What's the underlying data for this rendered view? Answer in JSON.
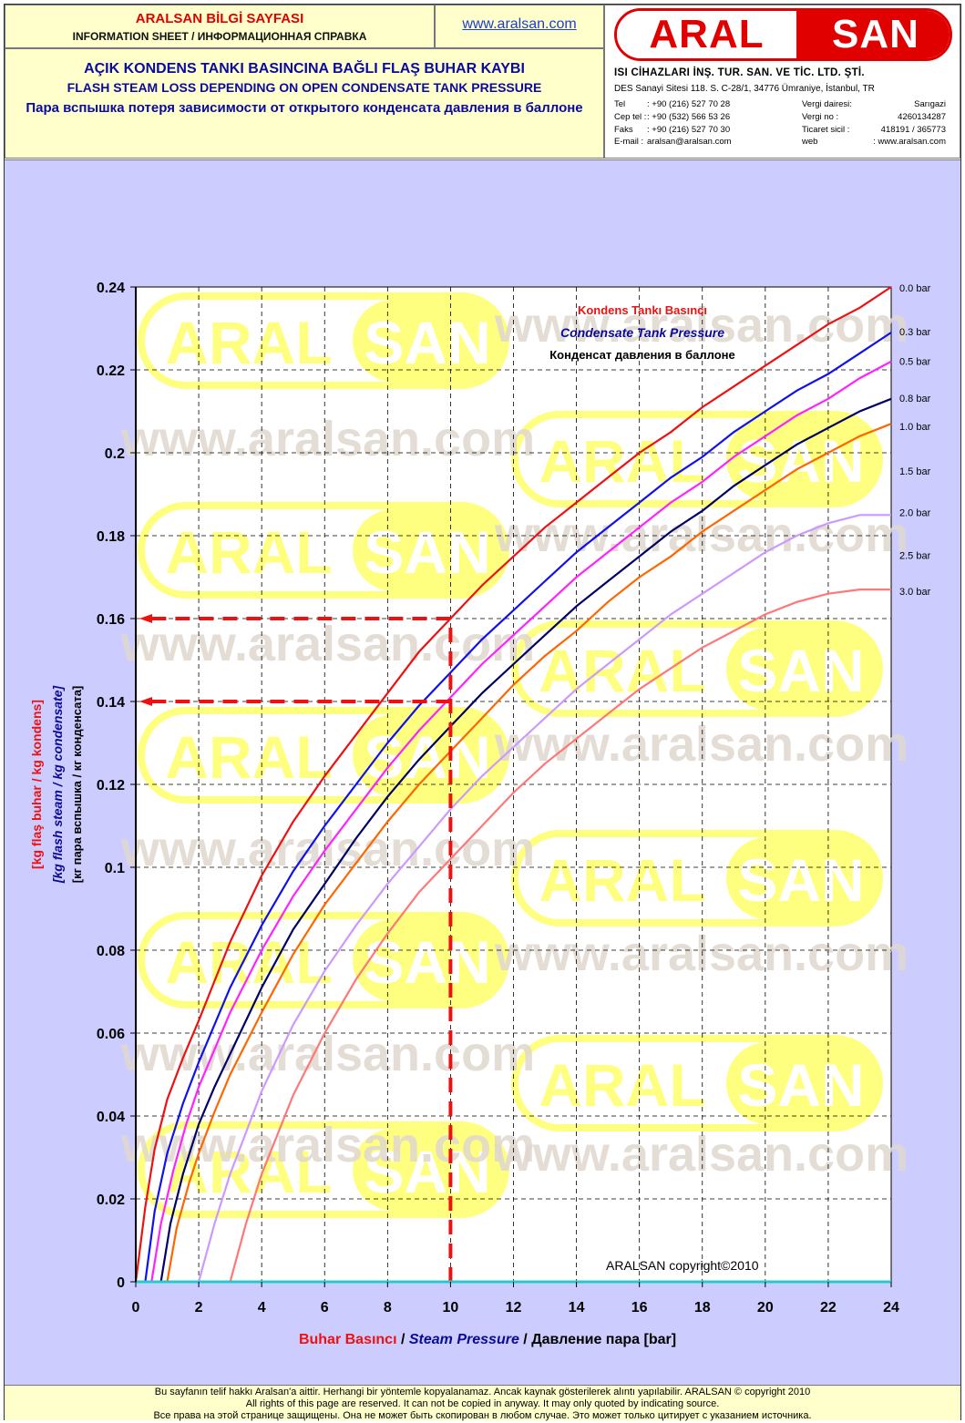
{
  "header": {
    "title_tr": "ARALSAN BİLGİ SAYFASI",
    "title_en_ru": "INFORMATION SHEET / ИНФОРМАЦИОННАЯ СПРАВКА",
    "url": "www.aralsan.com",
    "heading_tr": "AÇIK KONDENS TANKI BASINCINA BAĞLI FLAŞ BUHAR KAYBI",
    "heading_en": "FLASH STEAM LOSS DEPENDING ON OPEN CONDENSATE TANK PRESSURE",
    "heading_ru": "Пара вспышка потеря зависимости от открытого конденсата давления в баллоне"
  },
  "company": {
    "logo_left": "ARAL",
    "logo_right": "SAN",
    "name": "ISI CİHAZLARI İNŞ. TUR. SAN. VE TİC. LTD. ŞTİ.",
    "address": "DES Sanayi Sitesi 118. S. C-28/1, 34776 Ümraniye, İstanbul, TR",
    "rows": [
      {
        "k1": "Tel",
        "v1": ":   +90 (216) 527 70 28",
        "k2": "Vergi dairesi:",
        "v2": "Sarıgazi"
      },
      {
        "k1": "Cep tel :",
        "v1": ":   +90 (532) 566 53 26",
        "k2": "Vergi no      :",
        "v2": "4260134287"
      },
      {
        "k1": "Faks",
        "v1": ":   +90 (216) 527 70 30",
        "k2": "Ticaret sicil :",
        "v2": "418191 / 365773"
      },
      {
        "k1": "E-mail :",
        "v1": "aralsan@aralsan.com",
        "k2": "web",
        "v2": ": www.aralsan.com"
      }
    ]
  },
  "watermark": {
    "logo_left": "ARAL",
    "logo_right": "SAN",
    "url": "www.aralsan.com"
  },
  "chart_data": {
    "type": "line",
    "legend_title_tr": "Kondens Tankı Basıncı",
    "legend_title_en": "Condensate Tank Pressure",
    "legend_title_ru": "Конденсат давления в баллоне",
    "xlabel_tr": "Buhar Basıncı",
    "xlabel_sep1": " / ",
    "xlabel_en": "Steam Pressure",
    "xlabel_sep2": " / ",
    "xlabel_ru": "Давление пара [bar]",
    "ylabel_tr": "[kg flaş buhar / kg kondens]",
    "ylabel_en": "[kg flash steam / kg condensate]",
    "ylabel_ru": "[кг пара вспышка / кг конденсата]",
    "copyright": "ARALSAN copyright©2010",
    "xlim": [
      0,
      24
    ],
    "ylim": [
      0,
      0.24
    ],
    "x_ticks": [
      "0",
      "2",
      "4",
      "6",
      "8",
      "10",
      "12",
      "14",
      "16",
      "18",
      "20",
      "22",
      "24"
    ],
    "y_ticks": [
      "0",
      "0.02",
      "0.04",
      "0.06",
      "0.08",
      "0.1",
      "0.12",
      "0.14",
      "0.16",
      "0.18",
      "0.2",
      "0.22",
      "0.24"
    ],
    "grid": true,
    "series": [
      {
        "name": "0.0 bar",
        "color": "#ee1111",
        "x": [
          0,
          0.3,
          0.6,
          1,
          1.5,
          2,
          3,
          4,
          5,
          6,
          7,
          8,
          9,
          10,
          11,
          12,
          13,
          14,
          15,
          16,
          17,
          18,
          19,
          20,
          21,
          22,
          23,
          24
        ],
        "y": [
          0,
          0.018,
          0.032,
          0.044,
          0.054,
          0.063,
          0.082,
          0.098,
          0.111,
          0.122,
          0.132,
          0.142,
          0.152,
          0.16,
          0.168,
          0.175,
          0.182,
          0.188,
          0.194,
          0.2,
          0.205,
          0.211,
          0.216,
          0.221,
          0.226,
          0.231,
          0.235,
          0.24
        ]
      },
      {
        "name": "0.3 bar",
        "color": "#1111ee",
        "x": [
          0.3,
          0.6,
          1,
          1.5,
          2,
          3,
          4,
          5,
          6,
          7,
          8,
          9,
          10,
          11,
          12,
          13,
          14,
          15,
          16,
          17,
          18,
          19,
          20,
          21,
          22,
          23,
          24
        ],
        "y": [
          0,
          0.017,
          0.031,
          0.043,
          0.053,
          0.071,
          0.086,
          0.099,
          0.11,
          0.12,
          0.13,
          0.139,
          0.147,
          0.155,
          0.162,
          0.169,
          0.176,
          0.182,
          0.188,
          0.194,
          0.199,
          0.205,
          0.21,
          0.215,
          0.219,
          0.224,
          0.229
        ]
      },
      {
        "name": "0.5 bar",
        "color": "#ff22ff",
        "x": [
          0.5,
          0.8,
          1.2,
          1.6,
          2,
          3,
          4,
          5,
          6,
          7,
          8,
          9,
          10,
          11,
          12,
          13,
          14,
          15,
          16,
          17,
          18,
          19,
          20,
          21,
          22,
          23,
          24
        ],
        "y": [
          0,
          0.014,
          0.027,
          0.038,
          0.047,
          0.065,
          0.08,
          0.093,
          0.104,
          0.114,
          0.124,
          0.133,
          0.141,
          0.149,
          0.156,
          0.163,
          0.17,
          0.176,
          0.182,
          0.188,
          0.193,
          0.199,
          0.204,
          0.209,
          0.213,
          0.218,
          0.222
        ]
      },
      {
        "name": "0.8 bar",
        "color": "#000066",
        "x": [
          0.8,
          1.1,
          1.5,
          2,
          2.5,
          3,
          4,
          5,
          6,
          7,
          8,
          9,
          10,
          11,
          12,
          13,
          14,
          15,
          16,
          17,
          18,
          19,
          20,
          21,
          22,
          23,
          24
        ],
        "y": [
          0,
          0.014,
          0.026,
          0.038,
          0.047,
          0.055,
          0.071,
          0.085,
          0.096,
          0.107,
          0.117,
          0.126,
          0.134,
          0.142,
          0.149,
          0.156,
          0.163,
          0.169,
          0.175,
          0.181,
          0.186,
          0.192,
          0.197,
          0.202,
          0.206,
          0.21,
          0.213
        ]
      },
      {
        "name": "1.0 bar",
        "color": "#ff6600",
        "x": [
          1,
          1.3,
          1.7,
          2,
          2.5,
          3,
          4,
          5,
          6,
          7,
          8,
          9,
          10,
          11,
          12,
          13,
          14,
          15,
          16,
          17,
          18,
          19,
          20,
          21,
          22,
          23,
          24
        ],
        "y": [
          0,
          0.013,
          0.024,
          0.031,
          0.041,
          0.05,
          0.065,
          0.079,
          0.091,
          0.101,
          0.111,
          0.12,
          0.128,
          0.136,
          0.144,
          0.151,
          0.157,
          0.164,
          0.17,
          0.175,
          0.181,
          0.186,
          0.191,
          0.196,
          0.2,
          0.204,
          0.207
        ]
      },
      {
        "name": "1.5 bar",
        "color": "#ff6600",
        "x": [],
        "y": []
      },
      {
        "name": "2.0 bar",
        "color": "#cc99ff",
        "x": [
          2,
          2.5,
          3,
          4,
          5,
          6,
          7,
          8,
          9,
          10,
          11,
          12,
          13,
          14,
          15,
          16,
          17,
          18,
          19,
          20,
          21,
          22,
          23,
          24
        ],
        "y": [
          0,
          0.014,
          0.026,
          0.046,
          0.062,
          0.075,
          0.086,
          0.096,
          0.105,
          0.114,
          0.122,
          0.129,
          0.136,
          0.143,
          0.149,
          0.155,
          0.161,
          0.166,
          0.171,
          0.176,
          0.18,
          0.183,
          0.185,
          0.185
        ]
      },
      {
        "name": "2.5 bar",
        "color": "#cc99ff",
        "x": [],
        "y": []
      },
      {
        "name": "3.0 bar",
        "color": "#ff7777",
        "x": [
          3,
          3.5,
          4,
          5,
          6,
          7,
          8,
          9,
          10,
          11,
          12,
          13,
          14,
          15,
          16,
          17,
          18,
          19,
          20,
          21,
          22,
          23,
          24
        ],
        "y": [
          0,
          0.014,
          0.026,
          0.045,
          0.06,
          0.073,
          0.084,
          0.094,
          0.102,
          0.11,
          0.118,
          0.125,
          0.131,
          0.137,
          0.143,
          0.148,
          0.153,
          0.157,
          0.161,
          0.164,
          0.166,
          0.167,
          0.167
        ]
      }
    ],
    "example": {
      "steam_pressure": 10,
      "results": [
        0.16,
        0.14
      ],
      "color": "#ee1111"
    }
  },
  "footer": {
    "line_tr": "Bu sayfanın telif hakkı Aralsan'a aittir. Herhangi bir yöntemle kopyalanamaz. Ancak kaynak gösterilerek alıntı yapılabilir. ARALSAN © copyright 2010",
    "line_en": "All rights of this page are reserved. It can not be copied in anyway. It may only quoted by indicating source.",
    "line_ru": "Все права на этой странице защищены. Она не может быть скопирован в любом случае. Это может только цитирует с указанием источника."
  }
}
